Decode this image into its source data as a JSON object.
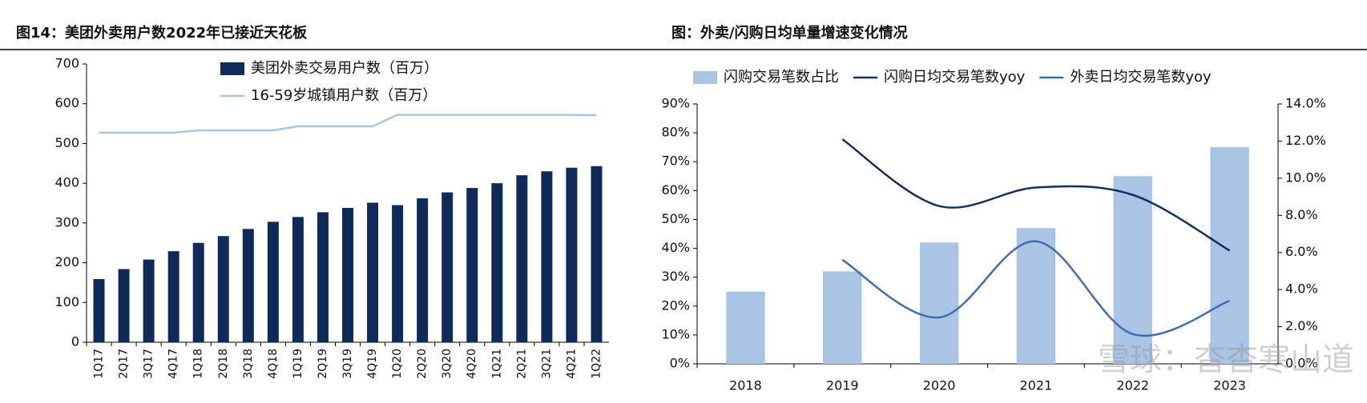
{
  "chart_data": [
    {
      "type": "bar_line",
      "title": "图14：美团外卖用户数2022年已接近天花板",
      "categories": [
        "1Q17",
        "2Q17",
        "3Q17",
        "4Q17",
        "1Q18",
        "2Q18",
        "3Q18",
        "4Q18",
        "1Q19",
        "2Q19",
        "3Q19",
        "4Q19",
        "1Q20",
        "2Q20",
        "3Q20",
        "4Q20",
        "1Q21",
        "2Q21",
        "3Q21",
        "4Q21",
        "1Q22"
      ],
      "series": [
        {
          "name": "美团外卖交易用户数（百万）",
          "type": "bar",
          "color": "#0e2a5a",
          "values": [
            159,
            184,
            208,
            229,
            250,
            267,
            285,
            303,
            315,
            327,
            338,
            351,
            345,
            362,
            377,
            388,
            400,
            420,
            430,
            439,
            443
          ]
        },
        {
          "name": "16-59岁城镇用户数（百万）",
          "type": "line",
          "color": "#a9c5e6",
          "values": [
            527,
            527,
            527,
            527,
            533,
            533,
            533,
            533,
            543,
            543,
            543,
            543,
            572,
            572,
            572,
            572,
            572,
            572,
            572,
            572,
            571
          ]
        }
      ],
      "ylim": [
        0,
        700
      ],
      "yticks": [
        0,
        100,
        200,
        300,
        400,
        500,
        600,
        700
      ]
    },
    {
      "type": "bar_line",
      "title": "图：外卖/闪购日均单量增速变化情况",
      "categories": [
        "2018",
        "2019",
        "2020",
        "2021",
        "2022",
        "2023"
      ],
      "series": [
        {
          "name": "闪购交易笔数占比",
          "type": "bar",
          "color": "#a9c4e5",
          "values": [
            25,
            32,
            42,
            47,
            65,
            75
          ]
        },
        {
          "name": "闪购日均交易笔数yoy",
          "type": "line",
          "axis": "y2",
          "smooth": true,
          "color": "#14305e",
          "values": [
            null,
            12.1,
            8.5,
            9.5,
            9.1,
            6.1
          ]
        },
        {
          "name": "外卖日均交易笔数yoy",
          "type": "line",
          "axis": "y2",
          "smooth": true,
          "color": "#3f6fb0",
          "values": [
            null,
            5.6,
            2.5,
            6.6,
            1.6,
            3.4
          ]
        }
      ],
      "ylim": [
        0,
        90
      ],
      "yticks": [
        {
          "value": 0,
          "label": "0%"
        },
        {
          "value": 10,
          "label": "10%"
        },
        {
          "value": 20,
          "label": "20%"
        },
        {
          "value": 30,
          "label": "30%"
        },
        {
          "value": 40,
          "label": "40%"
        },
        {
          "value": 50,
          "label": "50%"
        },
        {
          "value": 60,
          "label": "60%"
        },
        {
          "value": 70,
          "label": "70%"
        },
        {
          "value": 80,
          "label": "80%"
        },
        {
          "value": 90,
          "label": "90%"
        }
      ],
      "y2lim": [
        0,
        14
      ],
      "y2ticks": [
        {
          "value": 0,
          "label": "0.0%"
        },
        {
          "value": 2,
          "label": "2.0%"
        },
        {
          "value": 4,
          "label": "4.0%"
        },
        {
          "value": 6,
          "label": "6.0%"
        },
        {
          "value": 8,
          "label": "8.0%"
        },
        {
          "value": 10,
          "label": "10.0%"
        },
        {
          "value": 12,
          "label": "12.0%"
        },
        {
          "value": 14,
          "label": "14.0%"
        }
      ]
    }
  ],
  "watermark": "雪球：杳杳寒山道"
}
